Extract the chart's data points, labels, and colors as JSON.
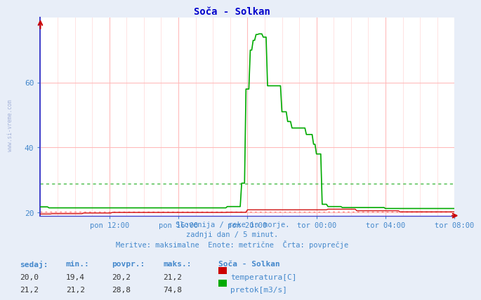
{
  "title": "Soča - Solkan",
  "title_color": "#0000cc",
  "bg_color": "#e8eef8",
  "plot_bg_color": "#ffffff",
  "xlabel_ticks": [
    "pon 12:00",
    "pon 16:00",
    "pon 20:00",
    "tor 00:00",
    "tor 04:00",
    "tor 08:00"
  ],
  "xlim": [
    0,
    288
  ],
  "ylim": [
    19,
    80
  ],
  "yticks": [
    20,
    40,
    60
  ],
  "hline_avg_temp": 20.2,
  "hline_avg_pretok": 28.8,
  "temp_color": "#cc0000",
  "pretok_color": "#00aa00",
  "avg_line_color_temp": "#ff8888",
  "avg_line_color_pretok": "#44bb44",
  "grid_color_v_major": "#ffbbbb",
  "grid_color_v_minor": "#ffdddd",
  "grid_color_h": "#ffbbbb",
  "axis_color": "#4444cc",
  "subtitle_color": "#4488cc",
  "table_header_color": "#4488cc",
  "table_val_color": "#333333",
  "tick_label_color": "#4488cc",
  "tick_positions_x": [
    48,
    96,
    144,
    192,
    240,
    288
  ],
  "watermark": "www.si-vreme.com",
  "subtitle_lines": [
    "Slovenija / reke in morje.",
    "zadnji dan / 5 minut.",
    "Meritve: maksimalne  Enote: metrične  Črta: povprečje"
  ],
  "table_headers": [
    "sedaj:",
    "min.:",
    "povpr.:",
    "maks.:"
  ],
  "row1": [
    "20,0",
    "19,4",
    "20,2",
    "21,2"
  ],
  "row2": [
    "21,2",
    "21,2",
    "28,8",
    "74,8"
  ],
  "legend_label1": "temperatura[C]",
  "legend_label2": "pretok[m3/s]",
  "legend_title": "Soča - Solkan"
}
